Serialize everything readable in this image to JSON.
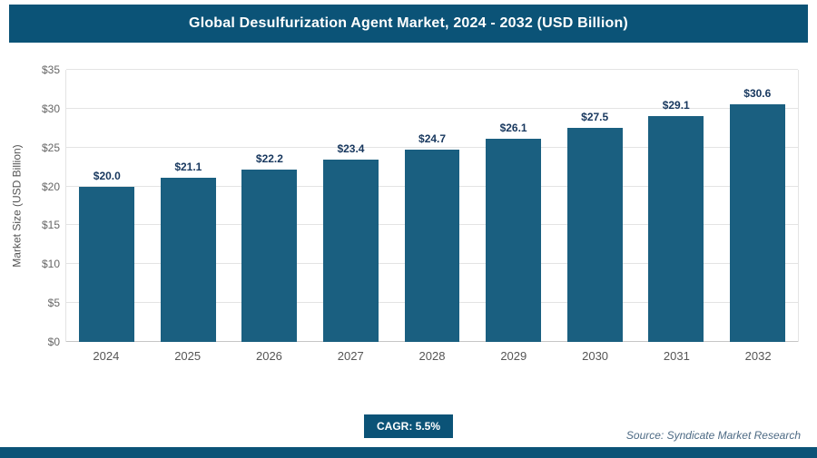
{
  "header": {
    "title": "Global Desulfurization Agent Market, 2024 - 2032 (USD Billion)"
  },
  "footer": {
    "cagr": "CAGR: 5.5%",
    "source": "Source: Syndicate Market Research"
  },
  "colors": {
    "header_bg": "#0b5377",
    "bar": "#1a5f80",
    "value_label": "#17375e",
    "cagr_bg": "#0b5377",
    "strip_bg": "#0b5377",
    "grid": "#e4e4e4",
    "axis_text": "#666666",
    "source_text": "#4d6a84"
  },
  "chart_data": {
    "type": "bar",
    "title": "Global Desulfurization Agent Market, 2024 - 2032 (USD Billion)",
    "categories": [
      "2024",
      "2025",
      "2026",
      "2027",
      "2028",
      "2029",
      "2030",
      "2031",
      "2032"
    ],
    "values": [
      20.0,
      21.1,
      22.2,
      23.4,
      24.7,
      26.1,
      27.5,
      29.1,
      30.6
    ],
    "value_labels": [
      "$20.0",
      "$21.1",
      "$22.2",
      "$23.4",
      "$24.7",
      "$26.1",
      "$27.5",
      "$29.1",
      "$30.6"
    ],
    "xlabel": "",
    "ylabel": "Market Size (USD Billion)",
    "ylim": [
      0,
      35
    ],
    "ytick_values": [
      0,
      5,
      10,
      15,
      20,
      25,
      30,
      35
    ],
    "ytick_labels": [
      "$0",
      "$5",
      "$10",
      "$15",
      "$20",
      "$25",
      "$30",
      "$35"
    ],
    "grid": true,
    "legend": false,
    "annotations": [
      "CAGR: 5.5%"
    ]
  }
}
